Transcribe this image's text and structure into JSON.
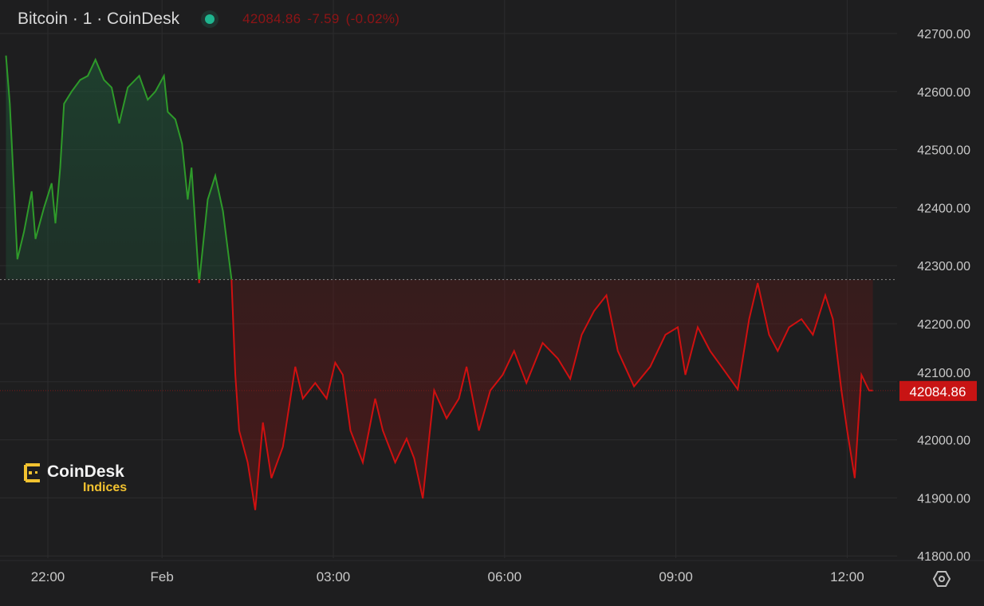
{
  "header": {
    "title": "Bitcoin · 1 · CoinDesk",
    "status_color": "#1fb58f",
    "last_price": "42084.86",
    "change": "-7.59",
    "change_pct": "(-0.02%)"
  },
  "logo": {
    "brand": "CoinDesk",
    "sub": "Indices"
  },
  "settings_icon": "gear-icon",
  "chart_data": {
    "type": "area",
    "title": "Bitcoin · 1 · CoinDesk",
    "xlabel": "",
    "ylabel": "",
    "ylim": [
      41800,
      42700
    ],
    "y_ticks": [
      "42700.00",
      "42600.00",
      "42500.00",
      "42400.00",
      "42300.00",
      "42200.00",
      "42100.00",
      "42000.00",
      "41900.00",
      "41800.00"
    ],
    "x_ticks": [
      "22:00",
      "Feb",
      "03:00",
      "06:00",
      "09:00",
      "12:00"
    ],
    "grid": true,
    "reference_price": 42276,
    "last_price_label": "42084.86",
    "colors": {
      "above": "#2e9a2a",
      "below": "#d01010",
      "price_tag": "#c81414"
    },
    "x": [
      "21:16",
      "21:20",
      "21:25",
      "21:28",
      "21:35",
      "21:43",
      "21:47",
      "21:56",
      "22:04",
      "22:08",
      "22:13",
      "22:17",
      "22:25",
      "22:34",
      "22:42",
      "22:50",
      "22:59",
      "23:07",
      "23:15",
      "23:24",
      "23:36",
      "23:45",
      "23:53",
      "00:02",
      "00:06",
      "00:14",
      "00:21",
      "00:27",
      "00:31",
      "00:39",
      "00:48",
      "00:56",
      "01:04",
      "01:13",
      "01:17",
      "01:21",
      "01:30",
      "01:38",
      "01:46",
      "01:55",
      "02:07",
      "02:20",
      "02:28",
      "02:41",
      "02:53",
      "03:02",
      "03:10",
      "03:18",
      "03:31",
      "03:44",
      "03:52",
      "04:05",
      "04:17",
      "04:25",
      "04:34",
      "04:46",
      "04:59",
      "05:12",
      "05:20",
      "05:33",
      "05:45",
      "05:58",
      "06:10",
      "06:23",
      "06:40",
      "06:56",
      "07:09",
      "07:21",
      "07:34",
      "07:47",
      "07:59",
      "08:16",
      "08:33",
      "08:49",
      "09:02",
      "09:10",
      "09:23",
      "09:36",
      "09:48",
      "10:05",
      "10:17",
      "10:26",
      "10:38",
      "10:47",
      "10:59",
      "11:12",
      "11:24",
      "11:37",
      "11:45",
      "11:54",
      "12:00",
      "12:08",
      "12:15",
      "12:23",
      "12:27"
    ],
    "values": [
      42662,
      42579,
      42414,
      42311,
      42359,
      42428,
      42346,
      42400,
      42442,
      42373,
      42469,
      42579,
      42600,
      42620,
      42627,
      42655,
      42620,
      42607,
      42545,
      42607,
      42627,
      42586,
      42600,
      42627,
      42565,
      42552,
      42510,
      42414,
      42469,
      42270,
      42414,
      42455,
      42394,
      42277,
      42112,
      42016,
      41961,
      41879,
      42030,
      41934,
      41988,
      42126,
      42071,
      42098,
      42071,
      42133,
      42112,
      42016,
      41961,
      42071,
      42016,
      41961,
      42002,
      41968,
      41899,
      42085,
      42037,
      42071,
      42126,
      42016,
      42085,
      42112,
      42153,
      42098,
      42167,
      42140,
      42105,
      42181,
      42222,
      42249,
      42153,
      42092,
      42126,
      42181,
      42194,
      42112,
      42194,
      42153,
      42126,
      42087,
      42208,
      42270,
      42181,
      42153,
      42194,
      42208,
      42181,
      42249,
      42208,
      42085,
      42016,
      41934,
      42112,
      42085,
      42084.86
    ]
  }
}
